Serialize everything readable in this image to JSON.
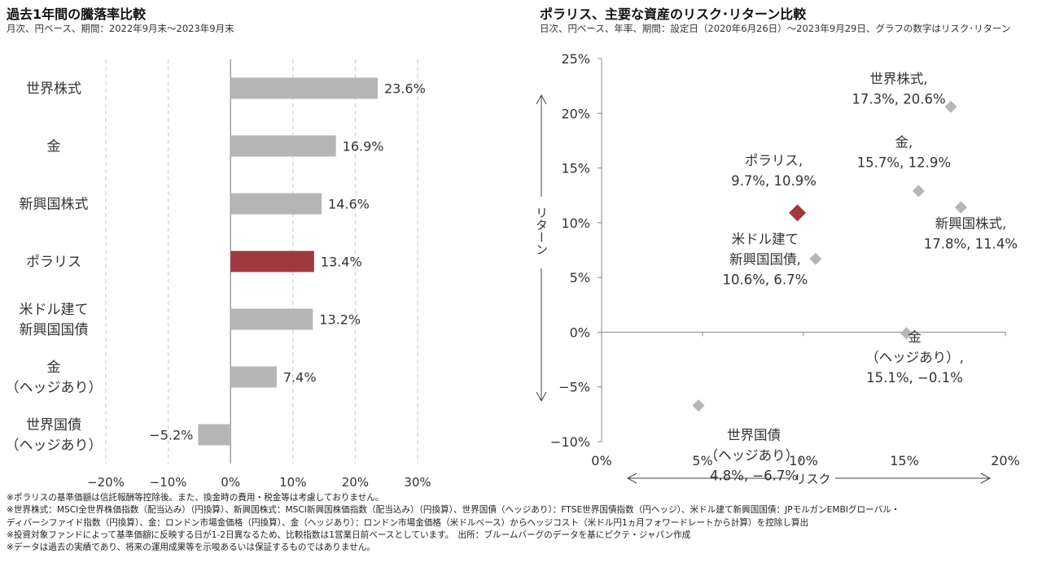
{
  "left": {
    "title": "過去1年間の騰落率比較",
    "subtitle": "月次、円ベース、期間：2022年9月末～2023年9月末"
  },
  "right": {
    "title": "ポラリス、主要な資産のリスク･リターン比較",
    "subtitle": "日次、円ベース、年率、期間：設定日（2020年6月26日）～2023年9月29日、グラフの数字はリスク･リターン"
  },
  "notes": [
    "※ポラリスの基準価額は信託報酬等控除後。また、換金時の費用・税金等は考慮しておりません。",
    "※世界株式：MSCI全世界株価指数（配当込み）（円換算）、新興国株式：MSCI新興国株価指数（配当込み）（円換算）、世界国債（ヘッジあり）：FTSE世界国債指数（円ヘッジ）、米ドル建て新興国国債：JPモルガンEMBIグローバル・",
    "ディバーシファイド指数（円換算）、金：ロンドン市場金価格（円換算）、金（ヘッジあり）：ロンドン市場金価格（米ドルベース）からヘッジコスト（米ドル円1ヵ月フォワードレートから計算）を控除し算出",
    "※投資対象ファンドによって基準価額に反映する日が1-2日異なるため、比較指数は1営業日前ベースとしています。　出所：ブルームバーグのデータを基にピクテ・ジャパン作成",
    "※データは過去の実績であり、将来の運用成果等を示唆あるいは保証するものではありません。"
  ],
  "colors": {
    "gray": "#b5b5b5",
    "highlight": "#9e3a3f",
    "grid": "#c8c8c8",
    "axis": "#888888"
  },
  "chart_data": [
    {
      "type": "bar",
      "orientation": "horizontal",
      "categories": [
        [
          "世界株式"
        ],
        [
          "金"
        ],
        [
          "新興国株式"
        ],
        [
          "ポラリス"
        ],
        [
          "米ドル建て",
          "新興国国債"
        ],
        [
          "金",
          "（ヘッジあり）"
        ],
        [
          "世界国債",
          "（ヘッジあり）"
        ]
      ],
      "values": [
        23.6,
        16.9,
        14.6,
        13.4,
        13.2,
        7.4,
        -5.2
      ],
      "value_labels": [
        "23.6%",
        "16.9%",
        "14.6%",
        "13.4%",
        "13.2%",
        "7.4%",
        "−5.2%"
      ],
      "highlight_index": 3,
      "xlim": [
        -20,
        30
      ],
      "xticks": [
        -20,
        -10,
        0,
        10,
        20,
        30
      ],
      "xtick_labels": [
        "−20%",
        "−10%",
        "0%",
        "10%",
        "20%",
        "30%"
      ],
      "grid": "vertical dashed"
    },
    {
      "type": "scatter",
      "xlabel": "リスク",
      "ylabel": "リターン",
      "xlim": [
        0,
        20
      ],
      "ylim": [
        -10,
        25
      ],
      "xticks": [
        0,
        5,
        10,
        15,
        20
      ],
      "xtick_labels": [
        "0%",
        "5%",
        "10%",
        "15%",
        "20%"
      ],
      "yticks": [
        -10,
        -5,
        0,
        5,
        10,
        15,
        20,
        25
      ],
      "ytick_labels": [
        "−10%",
        "−5%",
        "0%",
        "5%",
        "10%",
        "15%",
        "20%",
        "25%"
      ],
      "points": [
        {
          "x": 17.3,
          "y": 20.6,
          "label": [
            "世界株式,",
            "17.3%, 20.6%"
          ],
          "highlight": false
        },
        {
          "x": 15.7,
          "y": 12.9,
          "label": [
            "金,",
            "15.7%, 12.9%"
          ],
          "highlight": false
        },
        {
          "x": 17.8,
          "y": 11.4,
          "label": [
            "新興国株式,",
            "17.8%, 11.4%"
          ],
          "highlight": false
        },
        {
          "x": 9.7,
          "y": 10.9,
          "label": [
            "ポラリス,",
            "9.7%, 10.9%"
          ],
          "highlight": true
        },
        {
          "x": 10.6,
          "y": 6.7,
          "label": [
            "米ドル建て",
            "新興国国債,",
            "10.6%, 6.7%"
          ],
          "highlight": false
        },
        {
          "x": 15.1,
          "y": -0.1,
          "label": [
            "金",
            "（ヘッジあり）,",
            "15.1%, −0.1%"
          ],
          "highlight": false
        },
        {
          "x": 4.8,
          "y": -6.7,
          "label": [
            "世界国債",
            "（ヘッジあり）,",
            "4.8%, −6.7%"
          ],
          "highlight": false
        }
      ]
    }
  ]
}
